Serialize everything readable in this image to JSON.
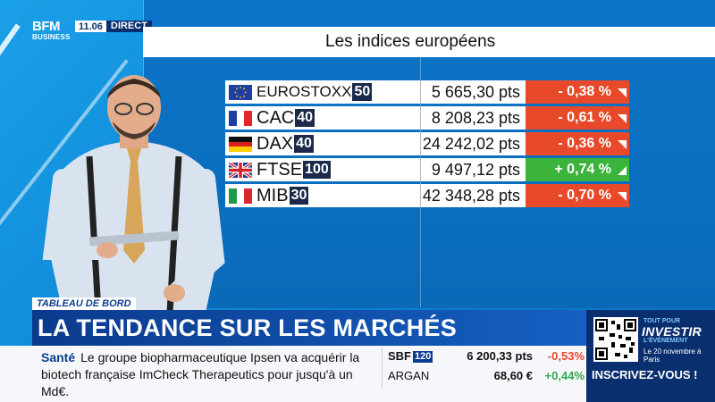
{
  "channel": {
    "logo_top": "BFM",
    "logo_bottom": "BUSINESS",
    "time": "11.06",
    "live": "DIRECT"
  },
  "board": {
    "title": "Les indices européens",
    "indices": [
      {
        "name": "EUROSTOXX",
        "number": "50",
        "points": "5 665,30 pts",
        "change": "- 0,38 %",
        "direction": "down",
        "flag": "eu-flag"
      },
      {
        "name": "CAC",
        "number": "40",
        "points": "8 208,23 pts",
        "change": "- 0,61 %",
        "direction": "down",
        "flag": "france-flag"
      },
      {
        "name": "DAX",
        "number": "40",
        "points": "24 242,02 pts",
        "change": "- 0,36 %",
        "direction": "down",
        "flag": "germany-flag"
      },
      {
        "name": "FTSE",
        "number": "100",
        "points": "9 497,12 pts",
        "change": "+ 0,74 %",
        "direction": "up",
        "flag": "uk-flag"
      },
      {
        "name": "MIB",
        "number": "30",
        "points": "42 348,28 pts",
        "change": "- 0,70 %",
        "direction": "down",
        "flag": "italy-flag"
      }
    ],
    "colors": {
      "down": "#e8492a",
      "up": "#3cb43c"
    }
  },
  "lower_third": {
    "tag": "TABLEAU DE BORD",
    "headline": "LA TENDANCE SUR LES MARCHÉS"
  },
  "ticker": {
    "source": "Santé",
    "news_text": "Le groupe biopharmaceutique Ipsen va acquérir la biotech française ImCheck Therapeutics pour jusqu'à un Md€.",
    "market": [
      {
        "name": "SBF",
        "badge": "120",
        "value": "6 200,33 pts",
        "change": "-0,53%",
        "direction": "down"
      },
      {
        "name": "ARGAN",
        "badge": "",
        "value": "68,60 €",
        "change": "+0,44%",
        "direction": "up"
      }
    ]
  },
  "promo": {
    "small_top": "TOUT POUR",
    "title": "INVESTIR",
    "subtitle": "L'ÉVÉNEMENT",
    "date_place": "Le 20 novembre à Paris",
    "cta": "INSCRIVEZ-VOUS !"
  }
}
